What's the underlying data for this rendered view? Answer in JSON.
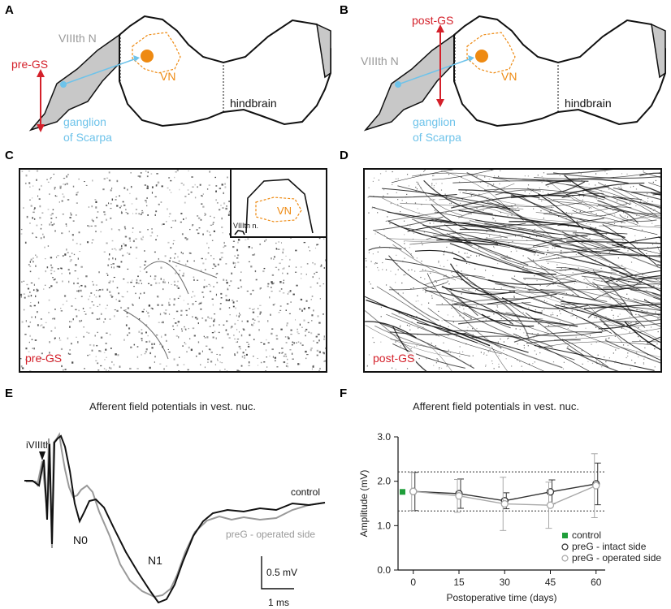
{
  "panels": {
    "A": {
      "letter": "A",
      "nerve": "VIIIth N",
      "lesion": "pre-GS",
      "nucleus": "VN",
      "ganglion_1": "ganglion",
      "ganglion_2": "of Scarpa",
      "hindbrain": "hindbrain"
    },
    "B": {
      "letter": "B",
      "nerve": "VIIIth N",
      "lesion": "post-GS",
      "nucleus": "VN",
      "ganglion_1": "ganglion",
      "ganglion_2": "of Scarpa",
      "hindbrain": "hindbrain"
    },
    "C": {
      "letter": "C",
      "label": "pre-GS",
      "inset_nucleus": "VN",
      "inset_nerve": "VIIIth n."
    },
    "D": {
      "letter": "D",
      "label": "post-GS"
    },
    "E": {
      "letter": "E",
      "title": "Afferent field potentials in vest. nuc.",
      "stim": "iVIIIth",
      "n0": "N0",
      "n1": "N1",
      "control": "control",
      "preg": "preG - operated side",
      "scale_mv": "0.5 mV",
      "scale_ms": "1 ms"
    },
    "F": {
      "letter": "F",
      "title": "Afferent field potentials in vest. nuc."
    }
  },
  "colors": {
    "red": "#d4202a",
    "blue": "#6ec3ea",
    "orange": "#ee8a12",
    "gray": "#a8a8a8",
    "green": "#1f9e3a"
  },
  "chart_data": {
    "type": "line",
    "xlabel": "Postoperative time (days)",
    "ylabel": "Amplitude (mV)",
    "x": [
      0,
      15,
      30,
      45,
      60
    ],
    "xticks": [
      "0",
      "15",
      "30",
      "45",
      "60"
    ],
    "yticks": [
      "0.0",
      "1.0",
      "2.0",
      "3.0"
    ],
    "xlim": [
      -5,
      63
    ],
    "ylim": [
      0,
      3
    ],
    "control": {
      "name": "control",
      "value": 1.76,
      "band": [
        1.33,
        2.21
      ]
    },
    "series": [
      {
        "name": "preG - intact side",
        "values": [
          1.77,
          1.72,
          1.56,
          1.76,
          1.94
        ],
        "err": [
          0.43,
          0.33,
          0.18,
          0.27,
          0.47
        ]
      },
      {
        "name": "preG - operated side",
        "values": [
          1.77,
          1.67,
          1.49,
          1.46,
          1.9
        ],
        "err": [
          0.43,
          0.37,
          0.6,
          0.52,
          0.72
        ]
      }
    ]
  }
}
